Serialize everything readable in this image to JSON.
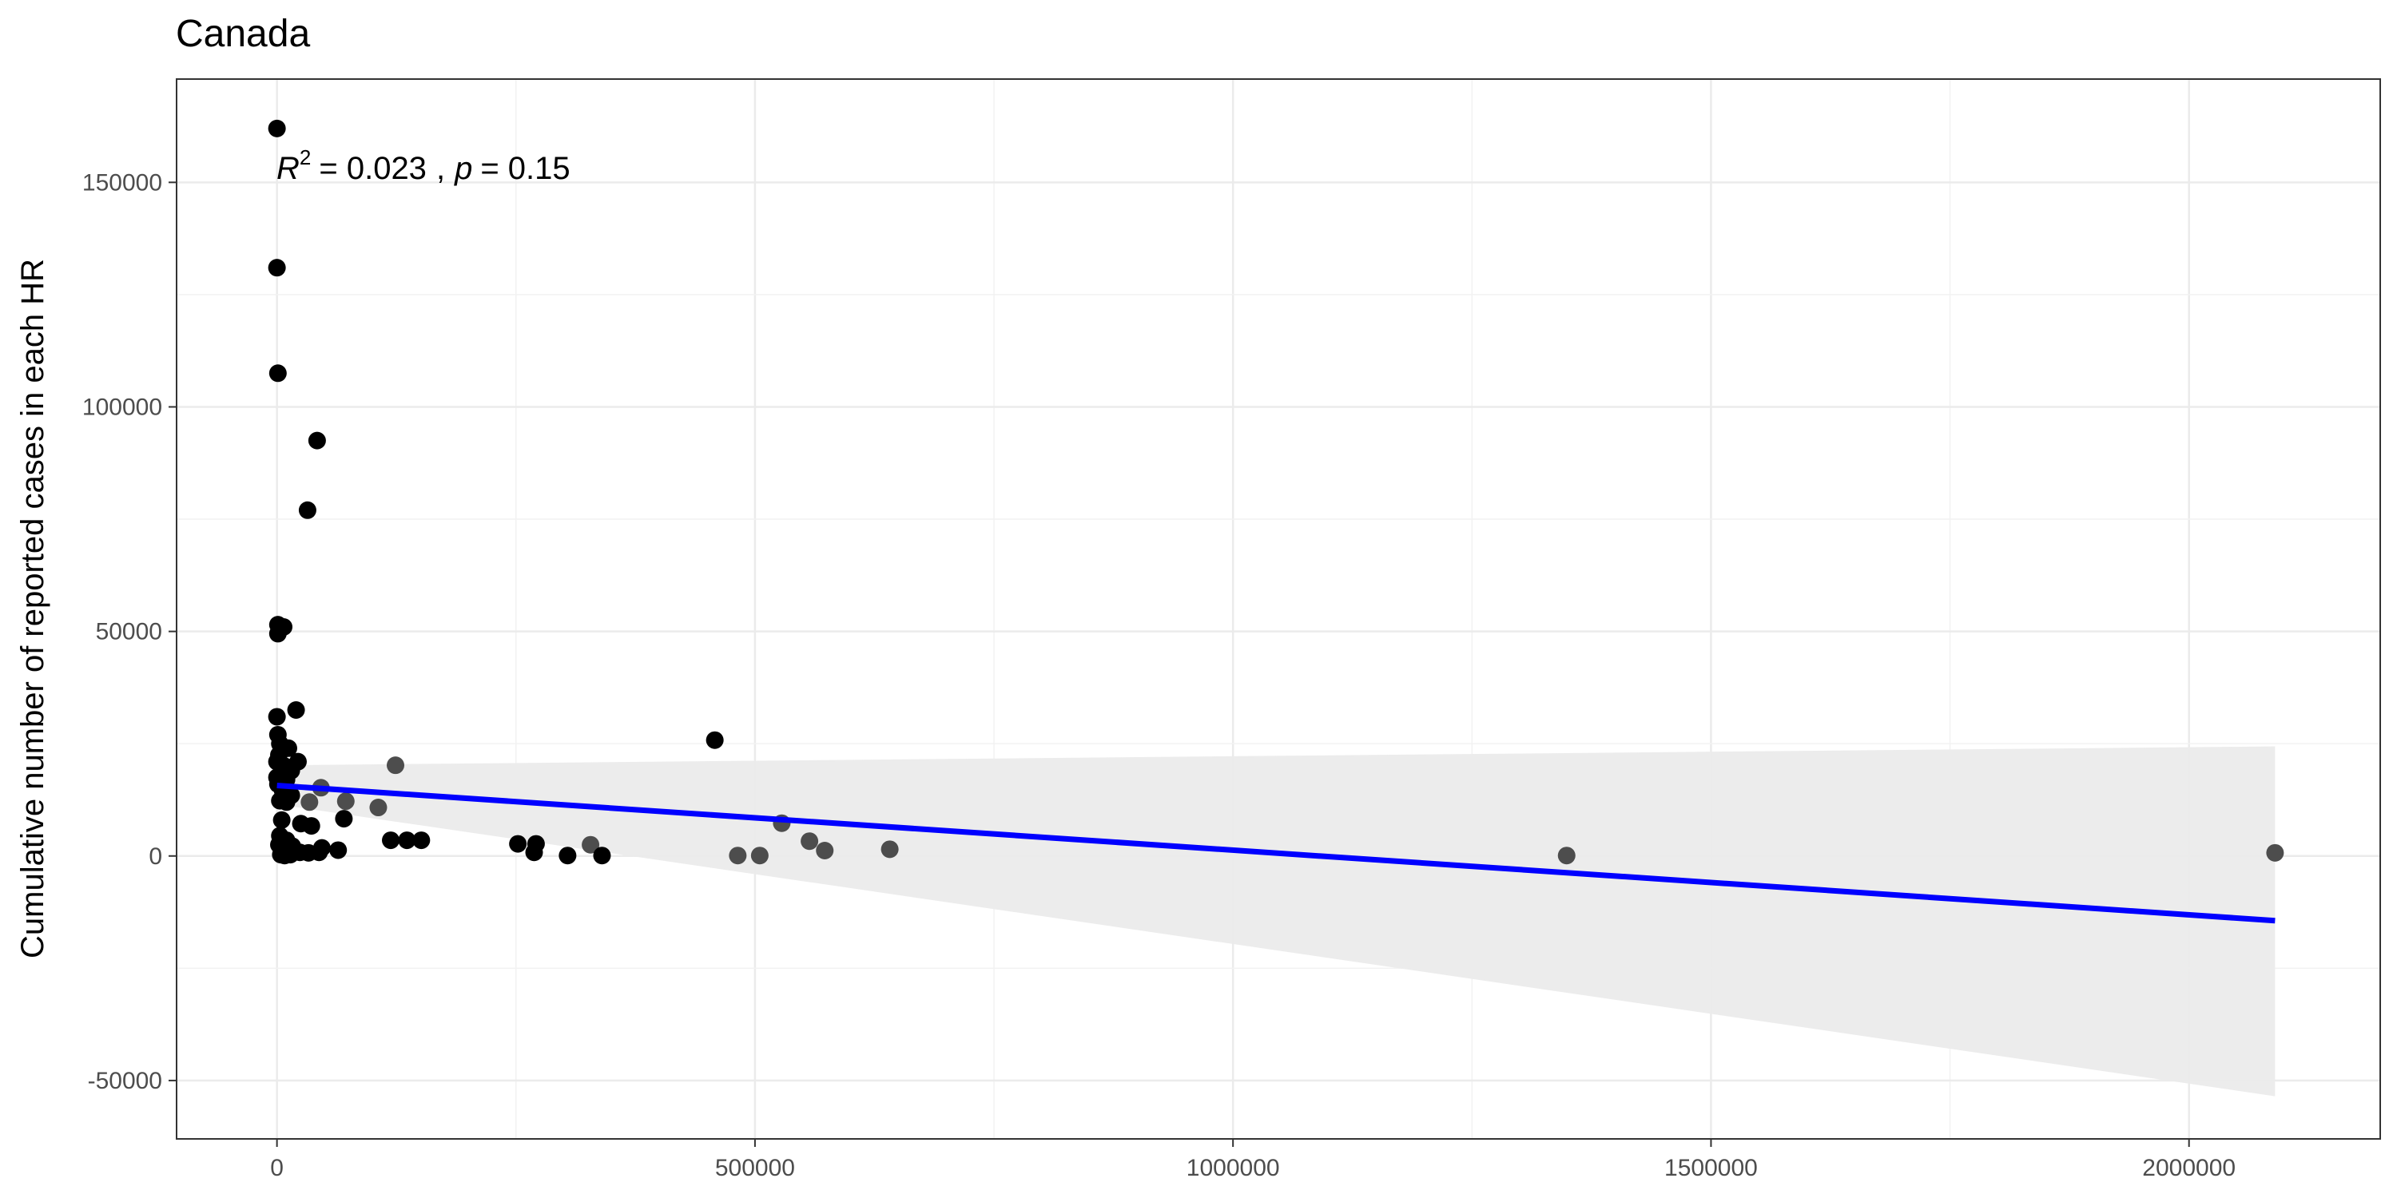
{
  "chart_data": {
    "type": "scatter",
    "title": "Canada",
    "xlabel": "",
    "ylabel": "Cumulative number of reported cases in each HR",
    "xlim": [
      -105000,
      2200000
    ],
    "ylim": [
      -63000,
      173000
    ],
    "x_ticks": [
      0,
      500000,
      1000000,
      1500000,
      2000000
    ],
    "x_tick_labels": [
      "0",
      "500000",
      "1000000",
      "1500000",
      "2000000"
    ],
    "y_ticks": [
      -50000,
      0,
      50000,
      100000,
      150000
    ],
    "y_tick_labels": [
      "-50000",
      "0",
      "50000",
      "100000",
      "150000"
    ],
    "grid": true,
    "annotation": {
      "r_symbol": "R",
      "r_exponent": "2",
      "r_value": "= 0.023",
      "separator": ",",
      "p_symbol": "p",
      "p_value": "= 0.15"
    },
    "regression": {
      "x_range": [
        0,
        2090000
      ],
      "y_start": 15700,
      "y_end": -14400,
      "ci_lower": [
        11500,
        -53500
      ],
      "ci_upper": [
        20200,
        24400
      ],
      "line_color": "#0000ff",
      "band_color": "#ebebeb"
    },
    "points": [
      {
        "x": 0,
        "y": 162000
      },
      {
        "x": 0,
        "y": 131000
      },
      {
        "x": 1000,
        "y": 107500
      },
      {
        "x": 42000,
        "y": 92500
      },
      {
        "x": 32000,
        "y": 77000
      },
      {
        "x": 1000,
        "y": 51500
      },
      {
        "x": 7000,
        "y": 51000
      },
      {
        "x": 1000,
        "y": 49500
      },
      {
        "x": 20000,
        "y": 32500
      },
      {
        "x": 0,
        "y": 31000
      },
      {
        "x": 1000,
        "y": 27000
      },
      {
        "x": 3000,
        "y": 25000
      },
      {
        "x": 458000,
        "y": 25800
      },
      {
        "x": 12000,
        "y": 24000
      },
      {
        "x": 2000,
        "y": 22500
      },
      {
        "x": 0,
        "y": 21000
      },
      {
        "x": 22000,
        "y": 21000
      },
      {
        "x": 124000,
        "y": 20200
      },
      {
        "x": 8000,
        "y": 20000
      },
      {
        "x": 15000,
        "y": 19000
      },
      {
        "x": 5000,
        "y": 18500
      },
      {
        "x": 0,
        "y": 17500
      },
      {
        "x": 10000,
        "y": 17000
      },
      {
        "x": 1000,
        "y": 16000
      },
      {
        "x": 46000,
        "y": 15200
      },
      {
        "x": 6000,
        "y": 14500
      },
      {
        "x": 15000,
        "y": 13500
      },
      {
        "x": 3000,
        "y": 12300
      },
      {
        "x": 34000,
        "y": 12000
      },
      {
        "x": 72000,
        "y": 12200
      },
      {
        "x": 10000,
        "y": 12000
      },
      {
        "x": 106000,
        "y": 10800
      },
      {
        "x": 70000,
        "y": 8300
      },
      {
        "x": 5000,
        "y": 8000
      },
      {
        "x": 25000,
        "y": 7200
      },
      {
        "x": 36000,
        "y": 6700
      },
      {
        "x": 528000,
        "y": 7300
      },
      {
        "x": 3000,
        "y": 4500
      },
      {
        "x": 119000,
        "y": 3500
      },
      {
        "x": 136000,
        "y": 3500
      },
      {
        "x": 151000,
        "y": 3500
      },
      {
        "x": 10000,
        "y": 3500
      },
      {
        "x": 557000,
        "y": 3300
      },
      {
        "x": 252000,
        "y": 2700
      },
      {
        "x": 271000,
        "y": 2700
      },
      {
        "x": 328000,
        "y": 2500
      },
      {
        "x": 2000,
        "y": 2500
      },
      {
        "x": 16000,
        "y": 2200
      },
      {
        "x": 47000,
        "y": 1800
      },
      {
        "x": 64000,
        "y": 1300
      },
      {
        "x": 573000,
        "y": 1200
      },
      {
        "x": 641000,
        "y": 1500
      },
      {
        "x": 2090000,
        "y": 700
      },
      {
        "x": 33000,
        "y": 700
      },
      {
        "x": 44000,
        "y": 800
      },
      {
        "x": 24000,
        "y": 800
      },
      {
        "x": 269000,
        "y": 800
      },
      {
        "x": 4000,
        "y": 300
      },
      {
        "x": 304000,
        "y": 100
      },
      {
        "x": 340000,
        "y": 100
      },
      {
        "x": 482000,
        "y": 100
      },
      {
        "x": 505000,
        "y": 100
      },
      {
        "x": 1349000,
        "y": 100
      },
      {
        "x": 8000,
        "y": 100
      },
      {
        "x": 14000,
        "y": 300
      }
    ],
    "point_color": "#000000",
    "point_color_over_band": "#4d4d4d"
  }
}
